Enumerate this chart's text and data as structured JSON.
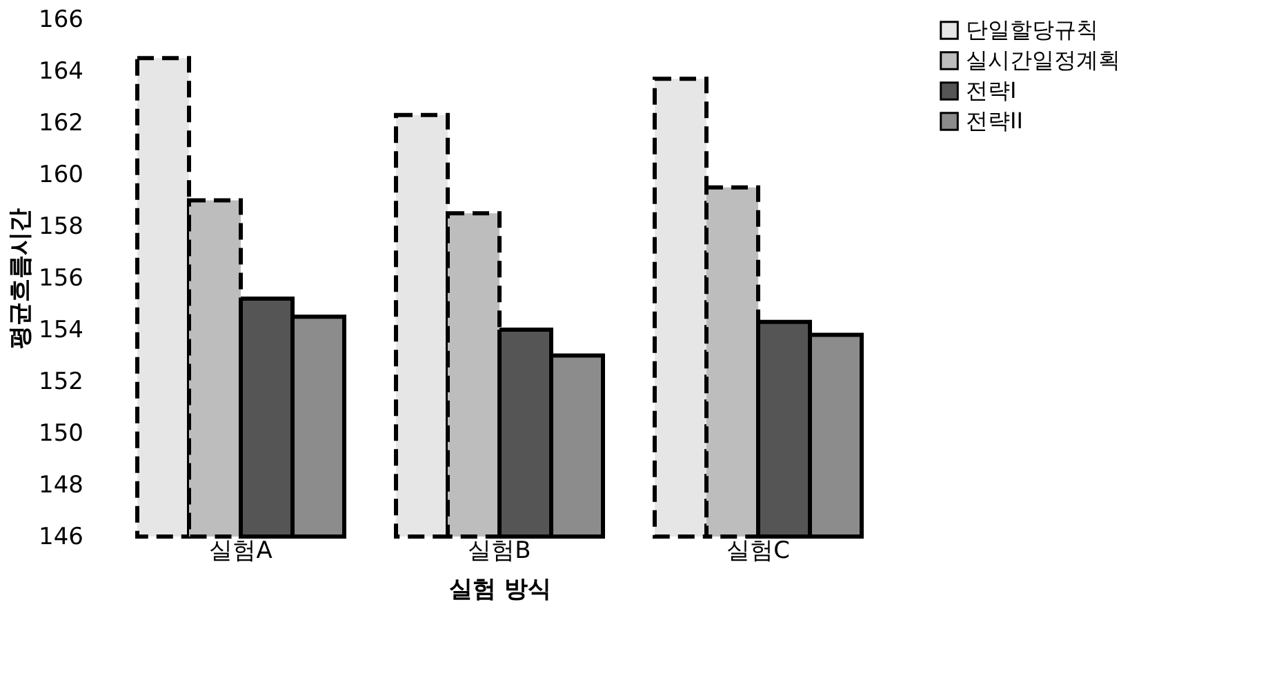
{
  "chart_data": {
    "type": "bar",
    "xlabel": "실험 방식",
    "ylabel": "평균흐름시간",
    "categories": [
      "실험A",
      "실험B",
      "실험C"
    ],
    "series": [
      {
        "name": "단일할당규칙",
        "color": "#e6e6e6",
        "line_style": "dashed",
        "values": [
          164.5,
          162.3,
          163.7
        ]
      },
      {
        "name": "실시간일정계획",
        "color": "#bdbdbd",
        "line_style": "dashed",
        "values": [
          159.0,
          158.5,
          159.5
        ]
      },
      {
        "name": "전략I",
        "color": "#555555",
        "line_style": "solid",
        "values": [
          155.2,
          154.0,
          154.3
        ]
      },
      {
        "name": "전략II",
        "color": "#8c8c8c",
        "line_style": "solid",
        "values": [
          154.5,
          153.0,
          153.8
        ]
      }
    ],
    "ylim": [
      146,
      166
    ],
    "yticks": [
      146,
      148,
      150,
      152,
      154,
      156,
      158,
      160,
      162,
      164,
      166
    ],
    "legend": "right",
    "grid": false
  }
}
